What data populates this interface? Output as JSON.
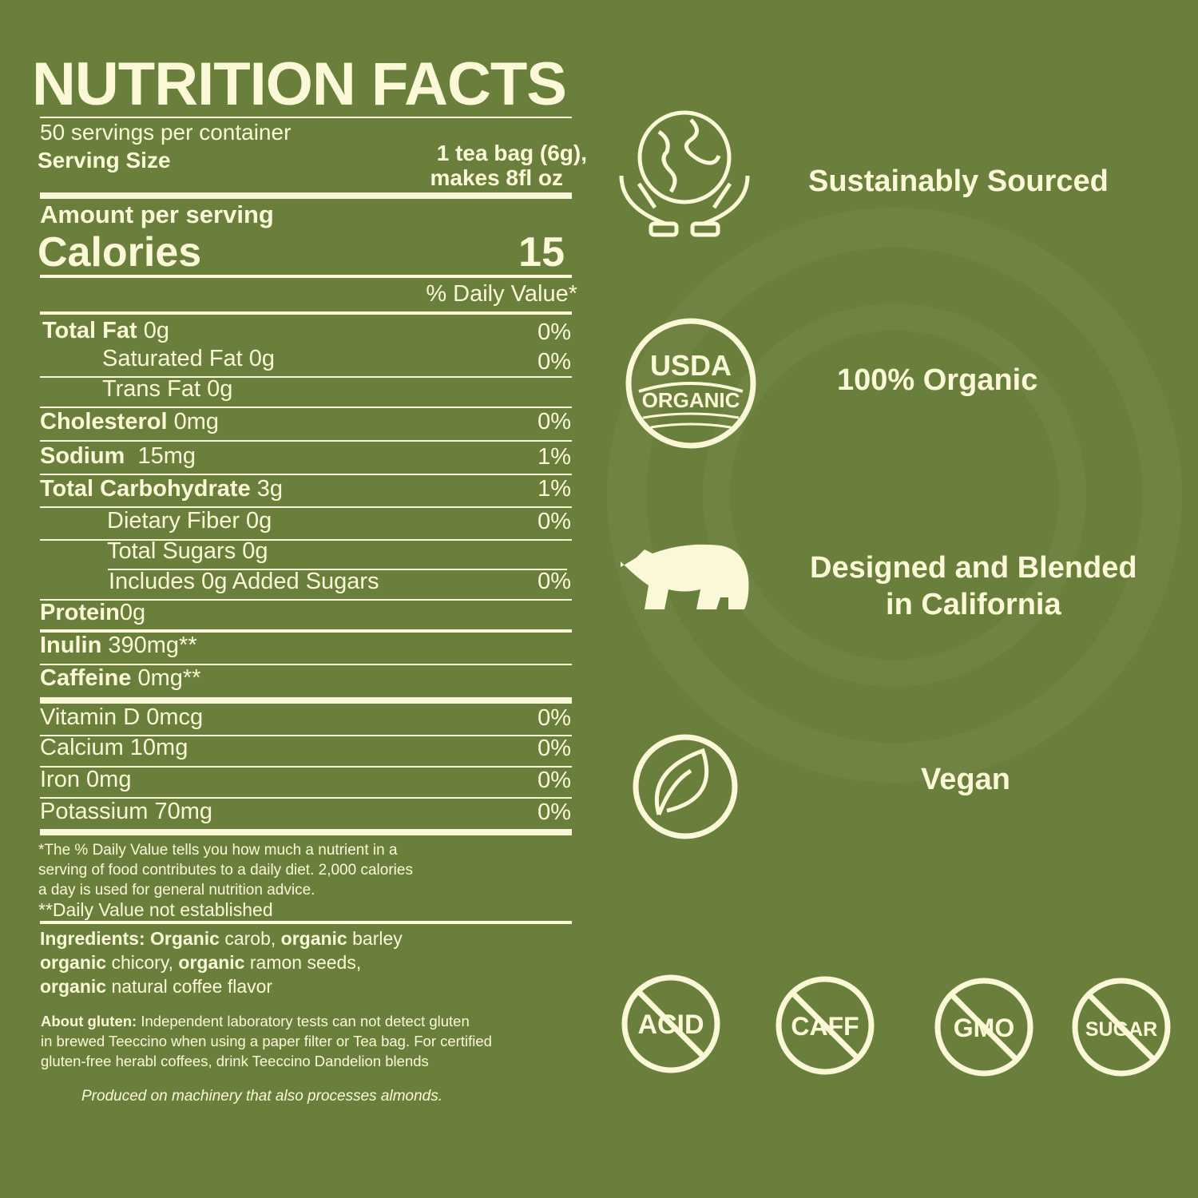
{
  "title": "NUTRITION FACTS",
  "servings": "50 servings per container",
  "serving_size_label": "Serving Size",
  "serving_size_value_1": "1 tea bag (6g),",
  "serving_size_value_2": "makes 8fl oz",
  "amount_per_serving": "Amount per serving",
  "calories_label": "Calories",
  "calories_value": "15",
  "daily_value_header": "% Daily Value*",
  "nutrients": [
    {
      "name": "Total Fat",
      "amount": "0g",
      "dv": "0%"
    },
    {
      "name": "Saturated Fat 0g",
      "amount": "",
      "dv": "0%"
    },
    {
      "name": "Trans Fat 0g",
      "amount": "",
      "dv": ""
    },
    {
      "name": "Cholesterol",
      "amount": "0mg",
      "dv": "0%"
    },
    {
      "name": "Sodium",
      "amount": "15mg",
      "dv": "1%"
    },
    {
      "name": "Total Carbohydrate",
      "amount": "3g",
      "dv": "1%"
    },
    {
      "name": "Dietary Fiber 0g",
      "amount": "",
      "dv": "0%"
    },
    {
      "name": "Total Sugars 0g",
      "amount": "",
      "dv": ""
    },
    {
      "name": "Includes 0g Added Sugars",
      "amount": "",
      "dv": "0%"
    },
    {
      "name": "Protein",
      "amount": "0g",
      "dv": ""
    },
    {
      "name": "Inulin",
      "amount": "390mg**",
      "dv": ""
    },
    {
      "name": "Caffeine",
      "amount": "0mg**",
      "dv": ""
    },
    {
      "name": "Vitamin D 0mcg",
      "amount": "",
      "dv": "0%"
    },
    {
      "name": "Calcium 10mg",
      "amount": "",
      "dv": "0%"
    },
    {
      "name": "Iron 0mg",
      "amount": "",
      "dv": "0%"
    },
    {
      "name": "Potassium 70mg",
      "amount": "",
      "dv": "0%"
    }
  ],
  "footnote": [
    "*The % Daily Value tells you how much a nutrient in a",
    "serving of food contributes to a daily diet. 2,000 calories",
    "a day is used for general nutrition advice."
  ],
  "footnote2": "**Daily Value not established",
  "ingredients": {
    "label": "Ingredients:",
    "parts": [
      "Organic",
      " carob, ",
      "organic",
      " barley",
      "organic",
      " chicory, ",
      "organic",
      " ramon seeds,",
      "organic",
      " natural coffee flavor"
    ]
  },
  "gluten": {
    "label": "About gluten:",
    "lines": [
      " Independent laboratory tests can not detect gluten",
      "in brewed Teeccino when using a paper filter or Tea bag. For certified",
      "gluten-free herabl coffees, drink Teeccino Dandelion blends"
    ]
  },
  "allergen": "Produced on machinery that also processes almonds.",
  "features": [
    {
      "icon": "globe-in-hands-icon",
      "label": "Sustainably Sourced"
    },
    {
      "icon": "usda-organic-seal-icon",
      "label": "100% Organic",
      "seal_top": "USDA",
      "seal_bottom": "ORGANIC"
    },
    {
      "icon": "bear-icon",
      "label_1": "Designed and Blended",
      "label_2": "in California"
    },
    {
      "icon": "leaf-icon",
      "label": "Vegan"
    }
  ],
  "free_from": [
    "ACID",
    "CAFF",
    "GMO",
    "SUGAR"
  ],
  "colors": {
    "background": "#6b7f3c",
    "text": "#fbf8d8"
  }
}
